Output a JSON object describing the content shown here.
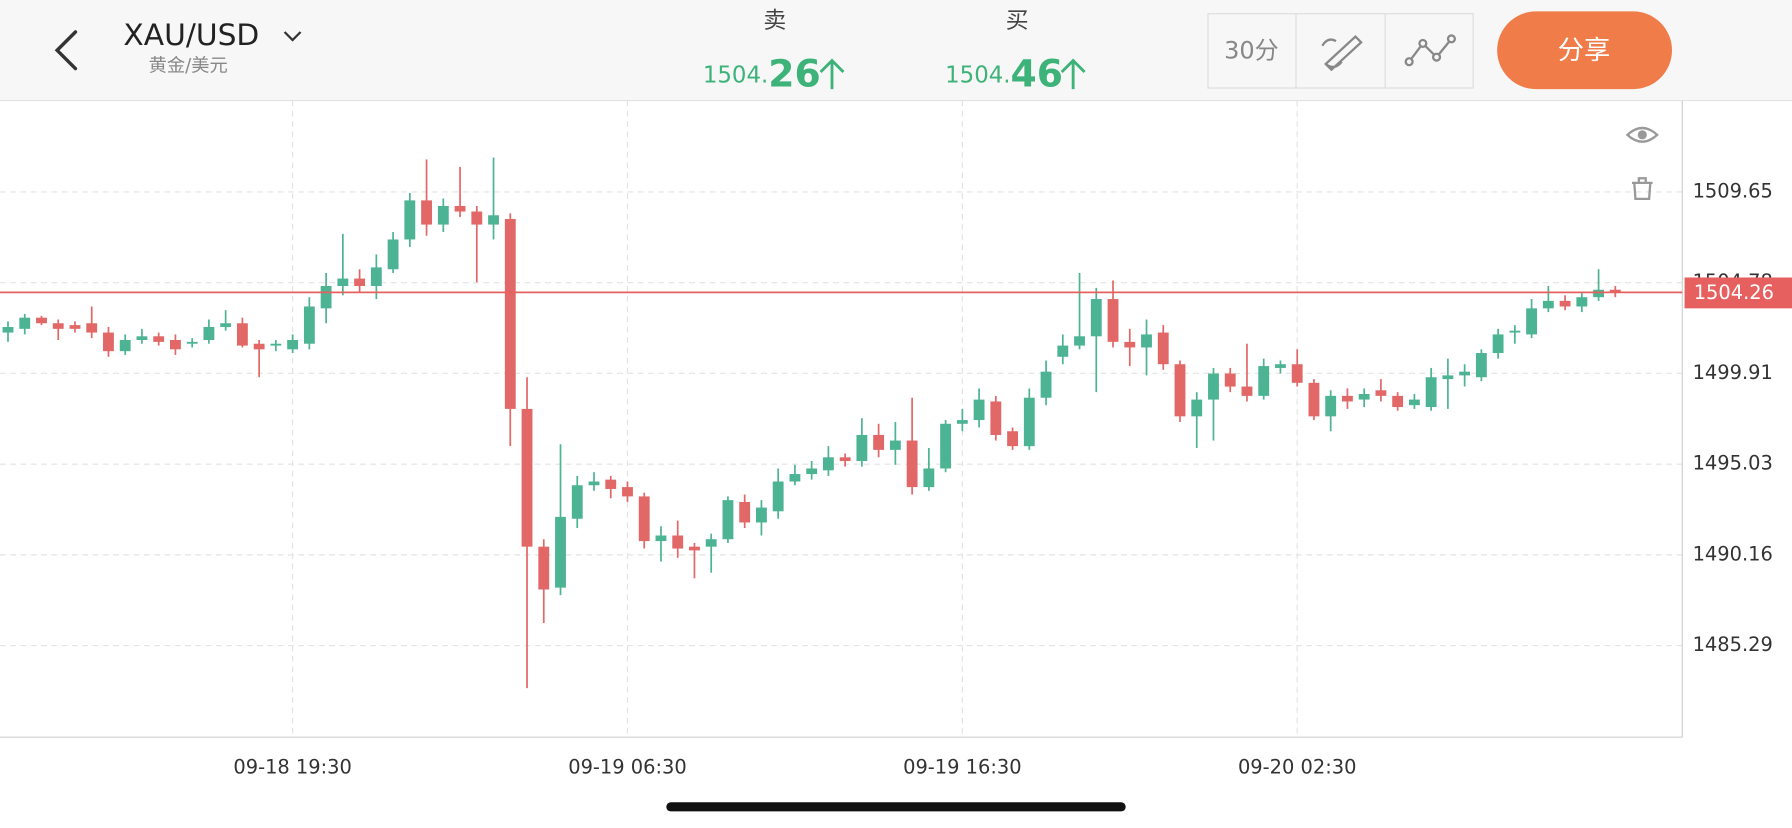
{
  "header": {
    "symbol": "XAU/USD",
    "name": "黄金/美元"
  },
  "quotes": {
    "sell": {
      "label": "卖",
      "price_main": "1504.",
      "price_decimal": "26"
    },
    "buy": {
      "label": "买",
      "price_main": "1504.",
      "price_decimal": "46"
    }
  },
  "toolbar": {
    "interval": "30分",
    "share": "分享"
  },
  "chart_data": {
    "type": "candlestick",
    "categories": [
      null,
      null,
      null,
      null,
      null,
      null,
      null,
      null,
      null,
      null,
      null,
      null,
      null,
      null,
      null,
      null,
      null,
      "09-18 19:30",
      null,
      null,
      null,
      null,
      null,
      null,
      null,
      null,
      null,
      null,
      null,
      null,
      null,
      null,
      null,
      null,
      null,
      null,
      null,
      "09-19 06:30",
      null,
      null,
      null,
      null,
      null,
      null,
      null,
      null,
      null,
      null,
      null,
      null,
      null,
      null,
      null,
      null,
      null,
      null,
      null,
      "09-19 16:30",
      null,
      null,
      null,
      null,
      null,
      null,
      null,
      null,
      null,
      null,
      null,
      null,
      null,
      null,
      null,
      null,
      null,
      null,
      null,
      "09-20 02:30",
      null,
      null,
      null,
      null,
      null,
      null,
      null,
      null,
      null,
      null,
      null,
      null,
      null,
      null,
      null,
      null,
      null,
      null,
      null
    ],
    "open": [
      1502.1,
      1502.3,
      1502.9,
      1502.6,
      1502.5,
      1502.6,
      1502.1,
      1501.1,
      1501.7,
      1501.9,
      1501.7,
      1501.5,
      1501.7,
      1502.4,
      1502.6,
      1501.5,
      1501.4,
      1501.2,
      1501.5,
      1503.4,
      1504.6,
      1505.0,
      1504.6,
      1505.5,
      1507.1,
      1509.2,
      1507.9,
      1508.9,
      1508.6,
      1507.9,
      1508.2,
      1498.0,
      1490.6,
      1488.4,
      1492.1,
      1493.9,
      1494.2,
      1493.8,
      1493.3,
      1490.9,
      1491.2,
      1490.6,
      1490.6,
      1491.0,
      1493.0,
      1491.9,
      1492.5,
      1494.1,
      1494.5,
      1494.7,
      1495.4,
      1495.2,
      1496.6,
      1495.8,
      1496.3,
      1493.8,
      1494.8,
      1497.2,
      1497.4,
      1498.4,
      1496.8,
      1496.0,
      1498.6,
      1500.8,
      1501.4,
      1501.9,
      1503.9,
      1501.6,
      1501.3,
      1502.1,
      1500.4,
      1497.6,
      1498.5,
      1499.9,
      1499.2,
      1498.7,
      1500.2,
      1500.4,
      1499.4,
      1497.6,
      1498.7,
      1498.5,
      1499.0,
      1498.7,
      1498.2,
      1498.1,
      1499.6,
      1499.8,
      1499.7,
      1501.0,
      1502.1,
      1502.0,
      1503.4,
      1503.8,
      1503.5,
      1504.0,
      1504.4
    ],
    "high": [
      1502.7,
      1503.1,
      1503.0,
      1502.8,
      1502.7,
      1503.5,
      1502.4,
      1502.0,
      1502.3,
      1502.1,
      1502.0,
      1501.8,
      1502.8,
      1503.3,
      1502.9,
      1501.7,
      1501.7,
      1502.0,
      1504.0,
      1505.3,
      1507.4,
      1505.5,
      1506.3,
      1507.5,
      1509.6,
      1511.4,
      1509.3,
      1511.0,
      1508.9,
      1511.5,
      1508.5,
      1499.7,
      1491.0,
      1496.1,
      1494.4,
      1494.6,
      1494.4,
      1494.1,
      1493.5,
      1491.7,
      1492.0,
      1490.8,
      1491.3,
      1493.3,
      1493.4,
      1493.1,
      1494.8,
      1495.0,
      1495.2,
      1496.0,
      1495.6,
      1497.5,
      1497.2,
      1497.3,
      1498.6,
      1495.9,
      1497.4,
      1498.0,
      1499.1,
      1498.7,
      1497.0,
      1499.1,
      1500.6,
      1502.0,
      1505.3,
      1504.5,
      1504.9,
      1502.3,
      1502.8,
      1502.5,
      1500.6,
      1498.9,
      1500.2,
      1500.2,
      1501.5,
      1500.7,
      1500.6,
      1501.2,
      1499.6,
      1499.0,
      1499.1,
      1499.1,
      1499.6,
      1498.9,
      1498.8,
      1500.2,
      1500.7,
      1500.4,
      1501.2,
      1502.3,
      1502.5,
      1503.9,
      1504.6,
      1504.1,
      1504.3,
      1505.5,
      1504.6
    ],
    "low": [
      1501.6,
      1502.0,
      1502.5,
      1501.7,
      1502.1,
      1501.8,
      1500.8,
      1500.9,
      1501.5,
      1501.4,
      1500.9,
      1501.3,
      1501.5,
      1502.2,
      1501.3,
      1499.7,
      1501.1,
      1501.0,
      1501.2,
      1502.6,
      1504.1,
      1504.3,
      1503.9,
      1505.3,
      1506.7,
      1507.3,
      1507.5,
      1508.3,
      1504.8,
      1507.1,
      1496.0,
      1483.0,
      1486.5,
      1488.0,
      1491.6,
      1493.6,
      1493.2,
      1493.0,
      1490.5,
      1489.8,
      1490.0,
      1488.9,
      1489.2,
      1490.8,
      1491.6,
      1491.2,
      1492.1,
      1493.9,
      1494.2,
      1494.4,
      1494.9,
      1494.9,
      1495.4,
      1495.0,
      1493.4,
      1493.6,
      1494.6,
      1496.8,
      1497.0,
      1496.3,
      1495.8,
      1495.8,
      1498.2,
      1500.4,
      1501.2,
      1498.9,
      1501.3,
      1500.3,
      1499.8,
      1500.1,
      1497.3,
      1495.9,
      1496.3,
      1498.9,
      1498.4,
      1498.5,
      1499.9,
      1499.2,
      1497.4,
      1496.8,
      1498.0,
      1498.1,
      1498.4,
      1497.9,
      1498.0,
      1497.9,
      1498.0,
      1499.2,
      1499.5,
      1500.7,
      1501.5,
      1501.8,
      1503.2,
      1503.3,
      1503.2,
      1503.8,
      1504.0
    ],
    "close": [
      1502.4,
      1502.9,
      1502.6,
      1502.3,
      1502.3,
      1502.1,
      1501.1,
      1501.7,
      1501.9,
      1501.6,
      1501.2,
      1501.6,
      1502.4,
      1502.6,
      1501.4,
      1501.2,
      1501.5,
      1501.7,
      1503.5,
      1504.6,
      1505.0,
      1504.6,
      1505.6,
      1507.1,
      1509.2,
      1507.9,
      1508.9,
      1508.6,
      1507.9,
      1508.4,
      1498.0,
      1490.6,
      1488.3,
      1492.2,
      1493.9,
      1494.1,
      1493.7,
      1493.3,
      1490.9,
      1491.2,
      1490.5,
      1490.4,
      1491.0,
      1493.1,
      1491.9,
      1492.7,
      1494.1,
      1494.5,
      1494.8,
      1495.4,
      1495.2,
      1496.6,
      1495.8,
      1496.3,
      1493.8,
      1494.8,
      1497.2,
      1497.4,
      1498.5,
      1496.6,
      1496.0,
      1498.6,
      1500.0,
      1501.4,
      1501.9,
      1503.9,
      1501.6,
      1501.3,
      1502.0,
      1500.4,
      1497.6,
      1498.5,
      1499.9,
      1499.2,
      1498.7,
      1500.3,
      1500.4,
      1499.4,
      1497.6,
      1498.7,
      1498.4,
      1498.8,
      1498.7,
      1498.1,
      1498.5,
      1499.7,
      1499.8,
      1500.0,
      1501.0,
      1502.0,
      1502.2,
      1503.4,
      1503.8,
      1503.5,
      1504.0,
      1504.4,
      1504.26
    ],
    "up_color": "#4db493",
    "down_color": "#e26868",
    "current_price": 1504.26,
    "current_price_color": "#e5605e",
    "ylim": [
      1480.37,
      1514.56
    ],
    "yticks": [
      1485.29,
      1490.16,
      1495.03,
      1499.91,
      1504.78,
      1509.65
    ],
    "grid": true
  }
}
